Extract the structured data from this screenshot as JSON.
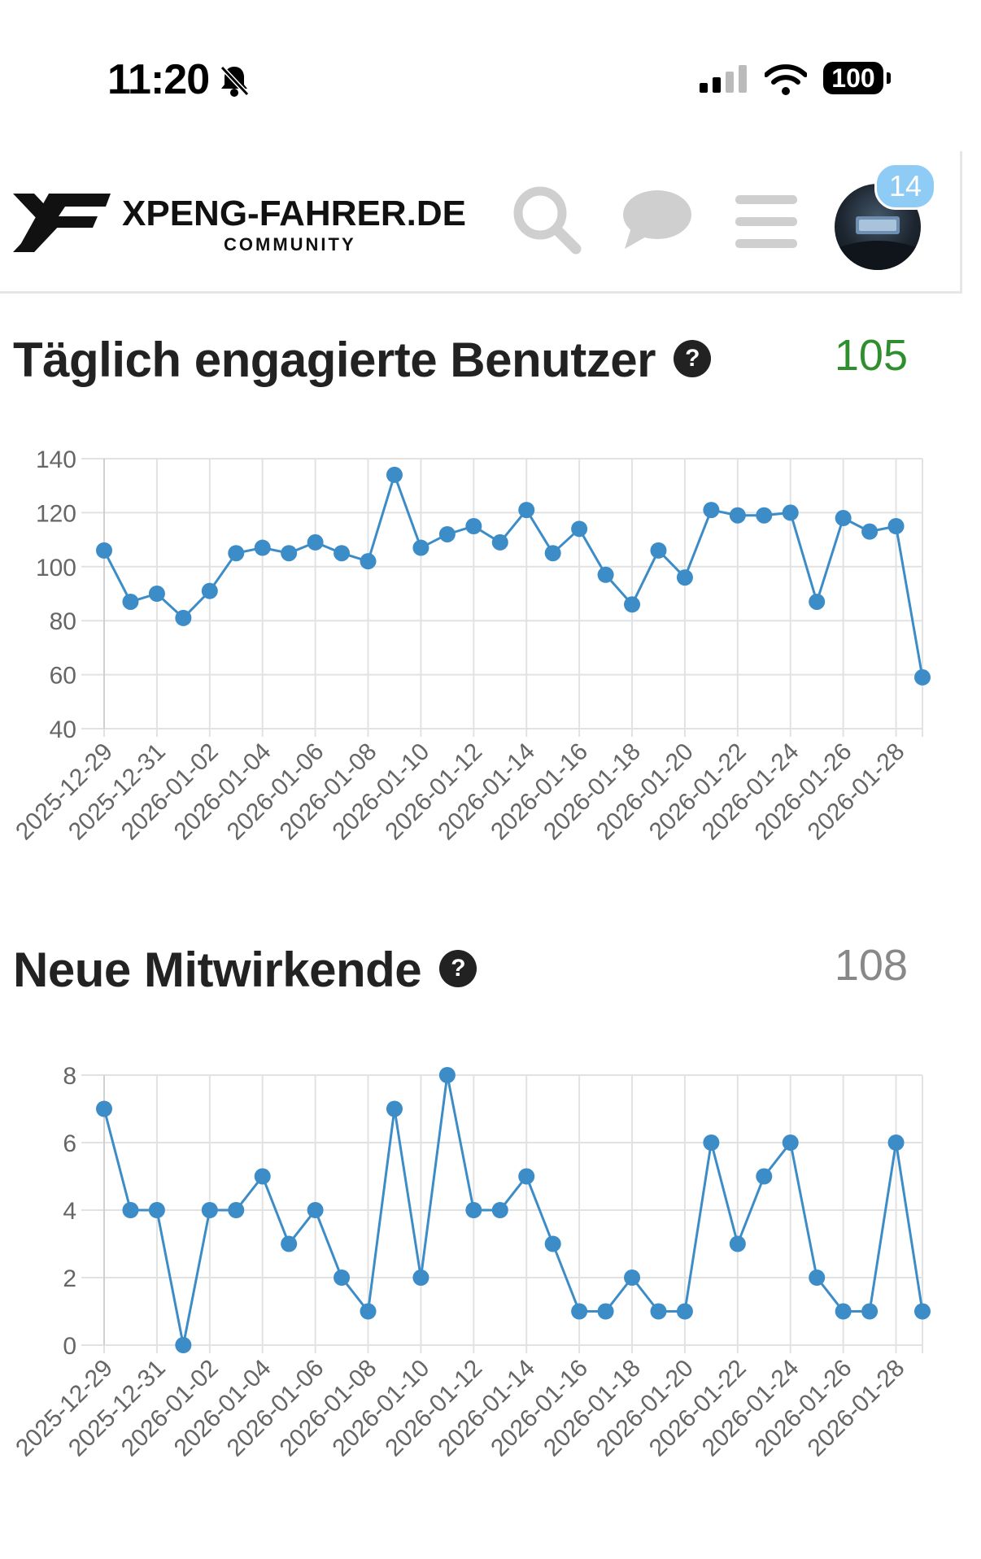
{
  "status_bar": {
    "time": "11:20",
    "battery": "100"
  },
  "header": {
    "logo_title": "XPENG-FAHRER.DE",
    "logo_subtitle": "COMMUNITY",
    "notification_count": "14"
  },
  "sections": [
    {
      "title": "Täglich engagierte Benutzer",
      "help": "?",
      "value": "105",
      "value_color": "#2f8f2f"
    },
    {
      "title": "Neue Mitwirkende",
      "help": "?",
      "value": "108",
      "value_color": "#888888"
    }
  ],
  "chart_data": [
    {
      "type": "line",
      "title": "Täglich engagierte Benutzer",
      "x": [
        "2025-12-29",
        "2025-12-30",
        "2025-12-31",
        "2026-01-01",
        "2026-01-02",
        "2026-01-03",
        "2026-01-04",
        "2026-01-05",
        "2026-01-06",
        "2026-01-07",
        "2026-01-08",
        "2026-01-09",
        "2026-01-10",
        "2026-01-11",
        "2026-01-12",
        "2026-01-13",
        "2026-01-14",
        "2026-01-15",
        "2026-01-16",
        "2026-01-17",
        "2026-01-18",
        "2026-01-19",
        "2026-01-20",
        "2026-01-21",
        "2026-01-22",
        "2026-01-23",
        "2026-01-24",
        "2026-01-25",
        "2026-01-26",
        "2026-01-27",
        "2026-01-28",
        "2026-01-29"
      ],
      "values": [
        106,
        87,
        90,
        81,
        91,
        105,
        107,
        105,
        109,
        105,
        102,
        134,
        107,
        112,
        115,
        109,
        121,
        105,
        114,
        97,
        86,
        106,
        96,
        121,
        119,
        119,
        120,
        87,
        118,
        113,
        115,
        59
      ],
      "tick_labels": [
        "2025-12-29",
        "2025-12-31",
        "2026-01-02",
        "2026-01-04",
        "2026-01-06",
        "2026-01-08",
        "2026-01-10",
        "2026-01-12",
        "2026-01-14",
        "2026-01-16",
        "2026-01-18",
        "2026-01-20",
        "2026-01-22",
        "2026-01-24",
        "2026-01-26",
        "2026-01-28"
      ],
      "yticks": [
        40,
        60,
        80,
        100,
        120,
        140
      ],
      "ylim": [
        40,
        140
      ],
      "color": "#3c8cc8"
    },
    {
      "type": "line",
      "title": "Neue Mitwirkende",
      "x": [
        "2025-12-29",
        "2025-12-30",
        "2025-12-31",
        "2026-01-01",
        "2026-01-02",
        "2026-01-03",
        "2026-01-04",
        "2026-01-05",
        "2026-01-06",
        "2026-01-07",
        "2026-01-08",
        "2026-01-09",
        "2026-01-10",
        "2026-01-11",
        "2026-01-12",
        "2026-01-13",
        "2026-01-14",
        "2026-01-15",
        "2026-01-16",
        "2026-01-17",
        "2026-01-18",
        "2026-01-19",
        "2026-01-20",
        "2026-01-21",
        "2026-01-22",
        "2026-01-23",
        "2026-01-24",
        "2026-01-25",
        "2026-01-26",
        "2026-01-27",
        "2026-01-28",
        "2026-01-29"
      ],
      "values": [
        7,
        4,
        4,
        0,
        4,
        4,
        5,
        3,
        4,
        2,
        1,
        7,
        2,
        8,
        4,
        4,
        5,
        3,
        1,
        1,
        2,
        1,
        1,
        6,
        3,
        5,
        6,
        2,
        1,
        1,
        6,
        1
      ],
      "tick_labels": [
        "2025-12-29",
        "2025-12-31",
        "2026-01-02",
        "2026-01-04",
        "2026-01-06",
        "2026-01-08",
        "2026-01-10",
        "2026-01-12",
        "2026-01-14",
        "2026-01-16",
        "2026-01-18",
        "2026-01-20",
        "2026-01-22",
        "2026-01-24",
        "2026-01-26",
        "2026-01-28"
      ],
      "yticks": [
        0,
        2,
        4,
        6,
        8
      ],
      "ylim": [
        0,
        8
      ],
      "color": "#3c8cc8"
    }
  ]
}
